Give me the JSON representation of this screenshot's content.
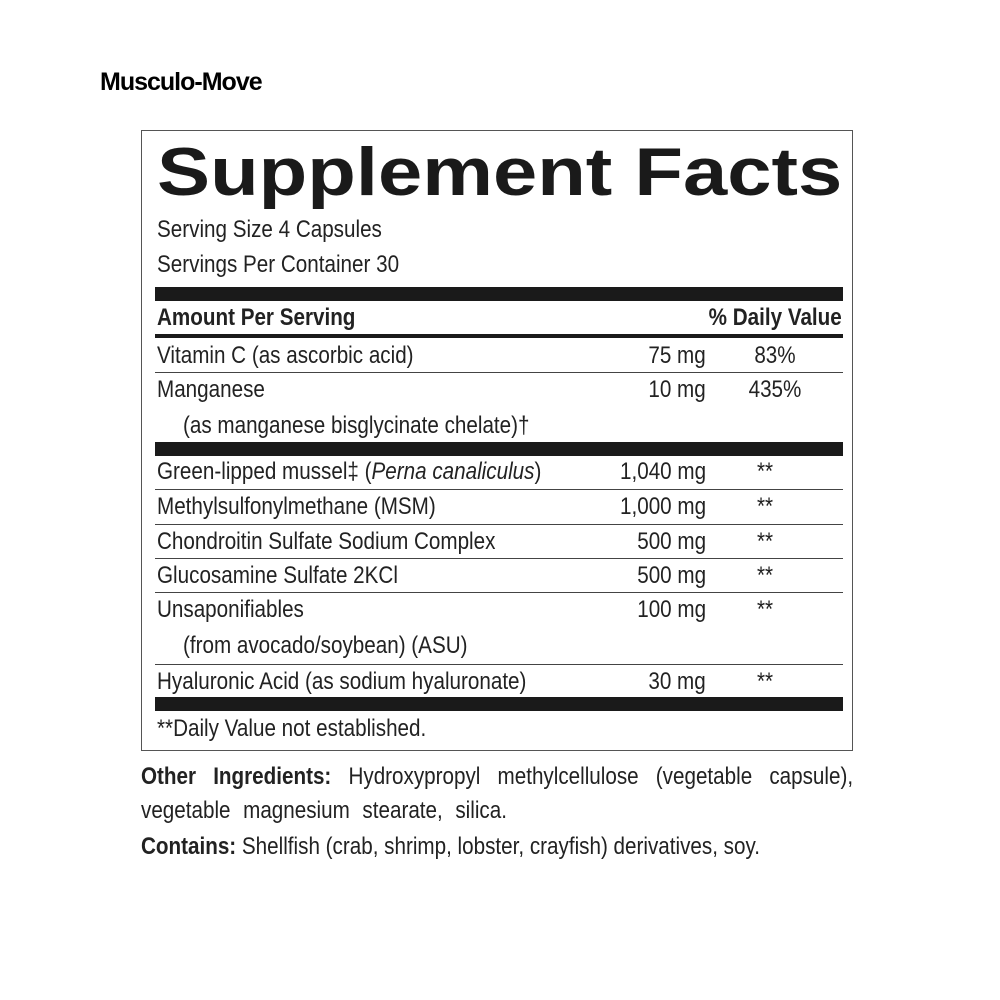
{
  "brand": "Musculo-Move",
  "label": {
    "title": "Supplement Facts",
    "serving_size": "Serving Size 4 Capsules",
    "servings_per_container": "Servings Per Container 30",
    "header_amount": "Amount Per Serving",
    "header_dv": "% Daily Value",
    "vitamins": [
      {
        "name": "Vitamin C (as ascorbic acid)",
        "amount": "75 mg",
        "dv": "83%"
      },
      {
        "name": "Manganese",
        "sub": "(as manganese bisglycinate chelate)†",
        "amount": "10 mg",
        "dv": "435%"
      }
    ],
    "ingredients": [
      {
        "name": "Green-lipped mussel‡ (",
        "italic": "Perna canaliculus",
        "close": ")",
        "amount": "1,040 mg",
        "dv": "**"
      },
      {
        "name": "Methylsulfonylmethane (MSM)",
        "amount": "1,000 mg",
        "dv": "**"
      },
      {
        "name": "Chondroitin Sulfate Sodium Complex",
        "amount": "500 mg",
        "dv": "**"
      },
      {
        "name": "Glucosamine Sulfate 2KCl",
        "amount": "500 mg",
        "dv": "**"
      },
      {
        "name": "Unsaponifiables",
        "sub": "(from avocado/soybean) (ASU)",
        "amount": "100 mg",
        "dv": "**"
      },
      {
        "name": "Hyaluronic Acid (as sodium hyaluronate)",
        "amount": "30 mg",
        "dv": "**"
      }
    ],
    "footnote": "**Daily Value not established."
  },
  "other_ingredients": {
    "label": "Other Ingredients:",
    "text": "Hydroxypropyl methylcellulose (vegetable capsule), vegetable magnesium stearate, silica."
  },
  "contains": {
    "label": "Contains:",
    "text": "Shellfish (crab, shrimp, lobster, crayfish) derivatives, soy."
  }
}
